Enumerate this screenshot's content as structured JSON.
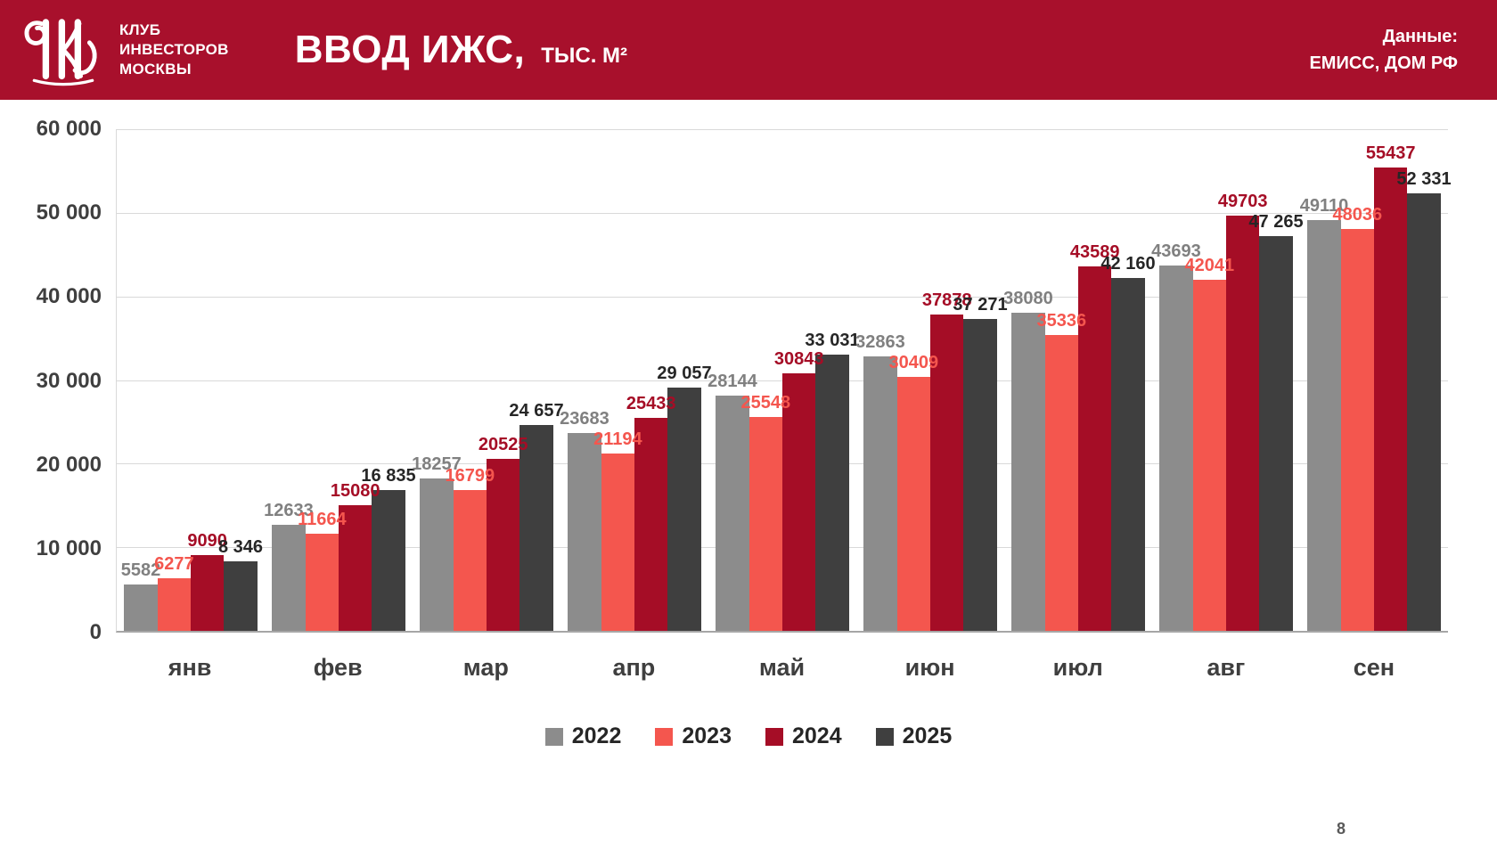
{
  "colors": {
    "accent_red": "#A8102C",
    "grid": "#D9D9D9",
    "axis_text": "#3F3F3F"
  },
  "header": {
    "org_lines": [
      "КЛУБ",
      "ИНВЕСТОРОВ",
      "МОСКВЫ"
    ],
    "title": "ВВОД ИЖС,",
    "title_unit": "ТЫС. М²",
    "source_line1": "Данные:",
    "source_line2": "ЕМИСС, ДОМ РФ"
  },
  "page_number": "8",
  "chart_data": {
    "type": "bar",
    "title": "ВВОД ИЖС, тыс. м²",
    "categories": [
      "янв",
      "фев",
      "мар",
      "апр",
      "май",
      "июн",
      "июл",
      "авг",
      "сен"
    ],
    "ylim": [
      0,
      60000
    ],
    "grid": true,
    "legend_position": "bottom",
    "y_ticks": [
      {
        "label": "0",
        "value": 0
      },
      {
        "label": "10 000",
        "value": 10000
      },
      {
        "label": "20 000",
        "value": 20000
      },
      {
        "label": "30 000",
        "value": 30000
      },
      {
        "label": "40 000",
        "value": 40000
      },
      {
        "label": "50 000",
        "value": 50000
      },
      {
        "label": "60 000",
        "value": 60000
      }
    ],
    "series": [
      {
        "name": "2022",
        "color": "#8C8C8C",
        "label_color": "#808080",
        "values": [
          5582,
          12633,
          18257,
          23683,
          28144,
          32863,
          38080,
          43693,
          49110
        ],
        "labels": [
          "5582",
          "12633",
          "18257",
          "23683",
          "28144",
          "32863",
          "38080",
          "43693",
          "49110"
        ]
      },
      {
        "name": "2023",
        "color": "#F4564E",
        "label_color": "#F4564E",
        "values": [
          6277,
          11664,
          16799,
          21194,
          25548,
          30409,
          35336,
          42041,
          48036
        ],
        "labels": [
          "6277",
          "11664",
          "16799",
          "21194",
          "25548",
          "30409",
          "35336",
          "42041",
          "48036"
        ]
      },
      {
        "name": "2024",
        "color": "#A50D26",
        "label_color": "#A50D26",
        "values": [
          9090,
          15080,
          20525,
          25433,
          30843,
          37878,
          43589,
          49703,
          55437
        ],
        "labels": [
          "9090",
          "15080",
          "20525",
          "25433",
          "30843",
          "37878",
          "43589",
          "49703",
          "55437"
        ]
      },
      {
        "name": "2025",
        "color": "#3F3F3F",
        "label_color": "#262626",
        "values": [
          8346,
          16835,
          24657,
          29057,
          33031,
          37271,
          42160,
          47265,
          52331
        ],
        "labels": [
          "8 346",
          "16 835",
          "24 657",
          "29 057",
          "33 031",
          "37 271",
          "42 160",
          "47 265",
          "52 331"
        ]
      }
    ]
  }
}
